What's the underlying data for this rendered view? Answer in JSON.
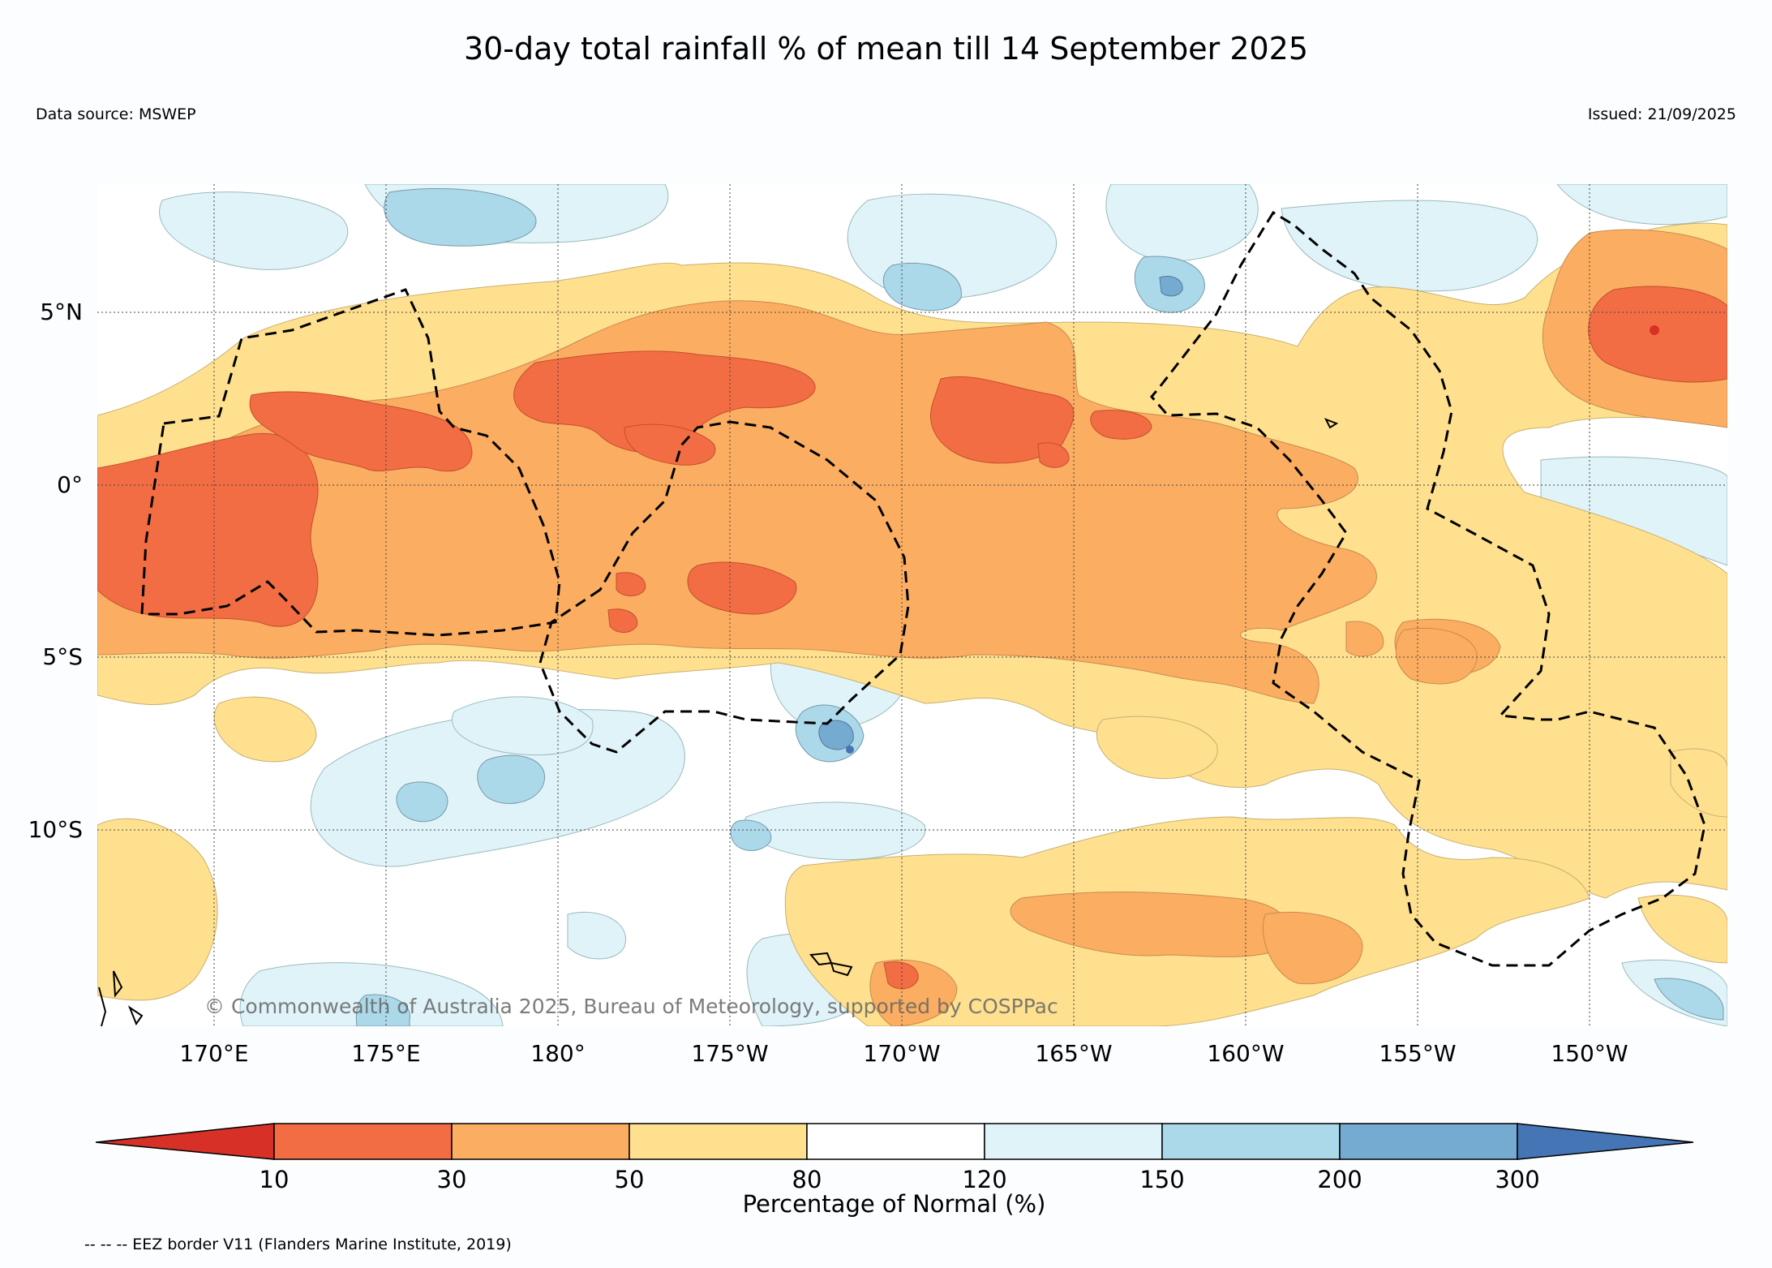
{
  "title": "30-day total rainfall % of mean till 14 September 2025",
  "data_source": "Data source: MSWEP",
  "issued": "Issued: 21/09/2025",
  "copyright": "© Commonwealth of Australia 2025, Bureau of Meteorology, supported by COSPPac",
  "footnote": "-- -- -- EEZ border V11 (Flanders Marine Institute, 2019)",
  "latitude_labels": [
    "5°N",
    "0°",
    "5°S",
    "10°S"
  ],
  "longitude_labels": [
    "170°E",
    "175°E",
    "180°",
    "175°W",
    "170°W",
    "165°W",
    "160°W",
    "155°W",
    "150°W"
  ],
  "legend": {
    "title": "Percentage of Normal (%)",
    "ticks": [
      "10",
      "30",
      "50",
      "80",
      "120",
      "150",
      "200",
      "300"
    ],
    "colors": [
      "#d73027",
      "#f26d43",
      "#fbae61",
      "#fee08f",
      "#ffffff",
      "#e0f3f8",
      "#abd9e9",
      "#75abd0",
      "#4575b4"
    ]
  }
}
